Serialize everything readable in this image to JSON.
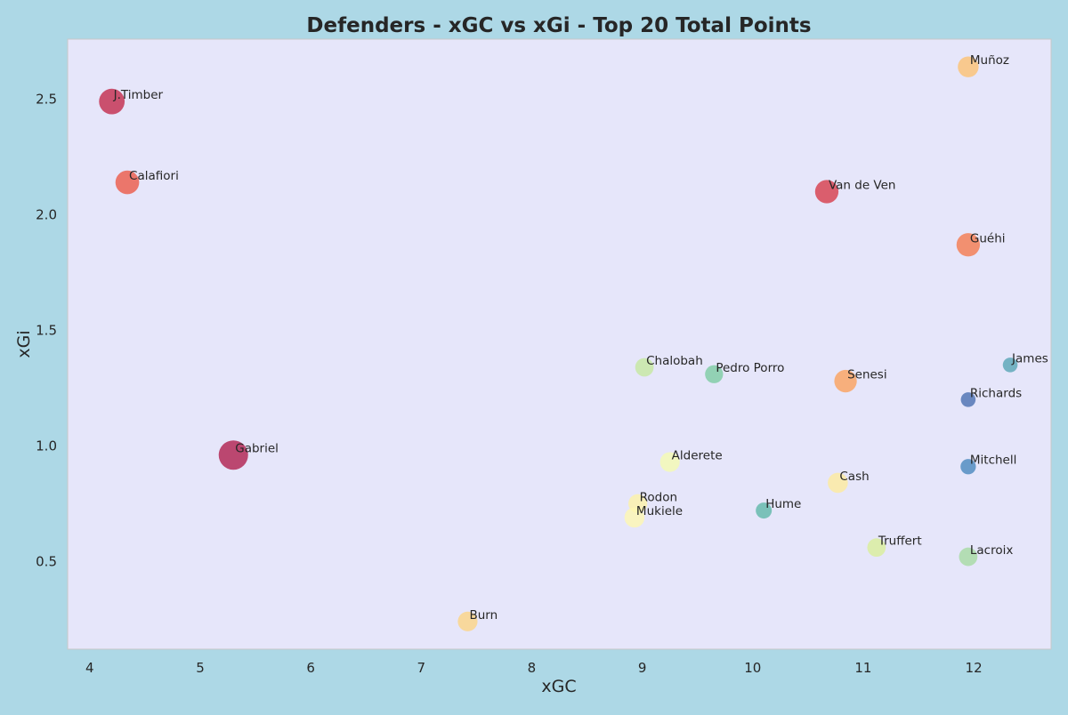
{
  "chart_data": {
    "type": "scatter",
    "title": "Defenders - xGC vs xGi - Top 20 Total Points",
    "xlabel": "xGC",
    "ylabel": "xGi",
    "xlim": [
      3.8,
      12.7
    ],
    "ylim": [
      0.12,
      2.76
    ],
    "x_ticks": [
      4,
      5,
      6,
      7,
      8,
      9,
      10,
      11,
      12
    ],
    "y_ticks": [
      0.5,
      1.0,
      1.5,
      2.0,
      2.5
    ],
    "y_tick_labels": [
      "0.5",
      "1.0",
      "1.5",
      "2.0",
      "2.5"
    ],
    "grid": false,
    "colors": {
      "figure_background": "#add8e6",
      "plot_background": "#e6e6fa",
      "colormap": "Spectral"
    },
    "points": [
      {
        "label": "J.Timber",
        "x": 4.2,
        "y": 2.49,
        "size": 0.68,
        "color": "#c32a4b"
      },
      {
        "label": "Calafiori",
        "x": 4.34,
        "y": 2.14,
        "size": 0.54,
        "color": "#ec5a47"
      },
      {
        "label": "Gabriel",
        "x": 5.3,
        "y": 0.96,
        "size": 1.0,
        "color": "#b01f4e"
      },
      {
        "label": "Burn",
        "x": 7.42,
        "y": 0.24,
        "size": 0.3,
        "color": "#fdd484"
      },
      {
        "label": "Rodon",
        "x": 8.96,
        "y": 0.75,
        "size": 0.26,
        "color": "#fdf3a8"
      },
      {
        "label": "Mukiele",
        "x": 8.93,
        "y": 0.69,
        "size": 0.32,
        "color": "#fef7b2"
      },
      {
        "label": "Chalobah",
        "x": 9.02,
        "y": 1.34,
        "size": 0.24,
        "color": "#c6e8a0"
      },
      {
        "label": "Alderete",
        "x": 9.25,
        "y": 0.93,
        "size": 0.3,
        "color": "#f5fbb1"
      },
      {
        "label": "Pedro Porro",
        "x": 9.65,
        "y": 1.31,
        "size": 0.22,
        "color": "#7dcca3"
      },
      {
        "label": "Hume",
        "x": 10.1,
        "y": 0.72,
        "size": 0.14,
        "color": "#5fb8a9"
      },
      {
        "label": "Van de Ven",
        "x": 10.67,
        "y": 2.1,
        "size": 0.52,
        "color": "#d73c4a"
      },
      {
        "label": "Senesi",
        "x": 10.84,
        "y": 1.28,
        "size": 0.46,
        "color": "#fba15c"
      },
      {
        "label": "Cash",
        "x": 10.77,
        "y": 0.84,
        "size": 0.32,
        "color": "#feeb9d"
      },
      {
        "label": "Truffert",
        "x": 11.12,
        "y": 0.56,
        "size": 0.24,
        "color": "#daef9a"
      },
      {
        "label": "Muñoz",
        "x": 11.95,
        "y": 2.64,
        "size": 0.36,
        "color": "#fdc273"
      },
      {
        "label": "Guéhi",
        "x": 11.95,
        "y": 1.87,
        "size": 0.52,
        "color": "#f57b4d"
      },
      {
        "label": "Richards",
        "x": 11.95,
        "y": 1.2,
        "size": 0.1,
        "color": "#4a6fb0"
      },
      {
        "label": "Mitchell",
        "x": 11.95,
        "y": 0.91,
        "size": 0.12,
        "color": "#4a88be"
      },
      {
        "label": "Lacroix",
        "x": 11.95,
        "y": 0.52,
        "size": 0.24,
        "color": "#a6dba3"
      },
      {
        "label": "James",
        "x": 12.33,
        "y": 1.35,
        "size": 0.1,
        "color": "#58a5b5"
      }
    ]
  }
}
